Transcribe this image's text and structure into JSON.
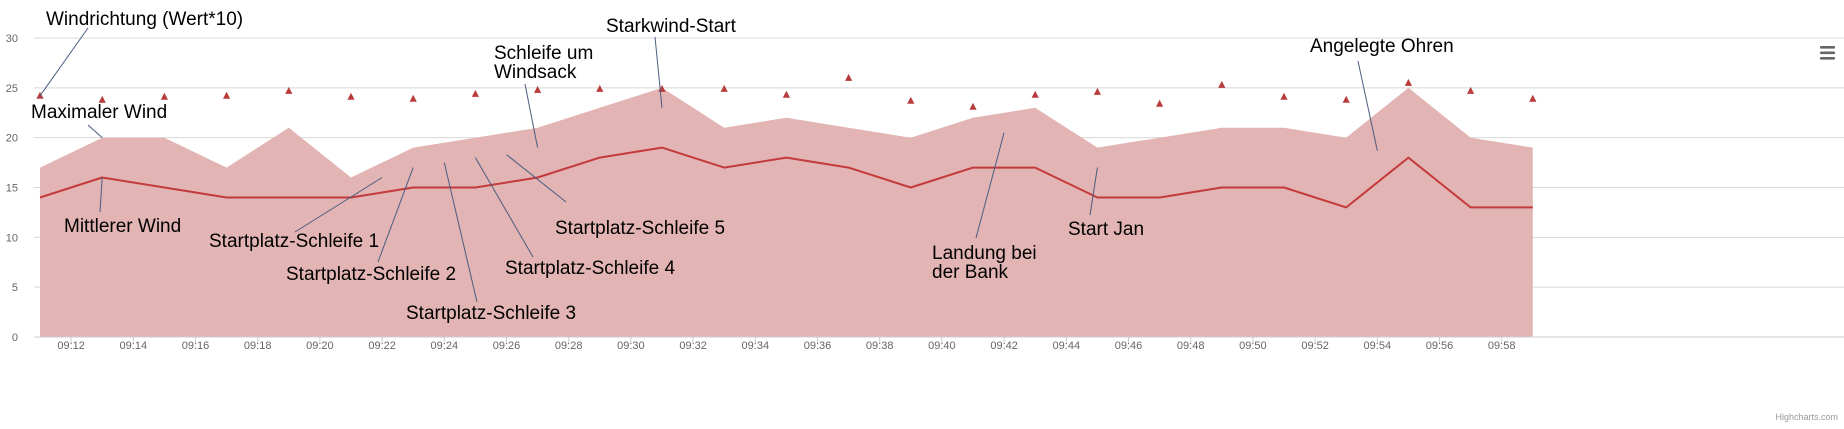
{
  "chart_data": {
    "type": "area",
    "title": "",
    "xlabel": "",
    "ylabel": "",
    "ylim": [
      0,
      30
    ],
    "y_ticks": [
      0,
      5,
      10,
      15,
      20,
      25,
      30
    ],
    "x_ticks": [
      "09:12",
      "09:14",
      "09:16",
      "09:18",
      "09:20",
      "09:22",
      "09:24",
      "09:26",
      "09:28",
      "09:30",
      "09:32",
      "09:34",
      "09:36",
      "09:38",
      "09:40",
      "09:42",
      "09:44",
      "09:46",
      "09:48",
      "09:50",
      "09:52",
      "09:54",
      "09:56",
      "09:58"
    ],
    "grid": true,
    "legend": "none",
    "x": [
      "09:11",
      "09:13",
      "09:15",
      "09:17",
      "09:19",
      "09:21",
      "09:23",
      "09:25",
      "09:27",
      "09:29",
      "09:31",
      "09:33",
      "09:35",
      "09:37",
      "09:39",
      "09:41",
      "09:43",
      "09:45",
      "09:47",
      "09:49",
      "09:51",
      "09:53",
      "09:55",
      "09:57",
      "09:59"
    ],
    "series": [
      {
        "type": "area",
        "color": "#e2b4b4",
        "values": [
          17,
          20,
          20,
          17,
          21,
          16,
          19,
          20,
          21,
          23,
          25,
          21,
          22,
          21,
          20,
          22,
          23,
          19,
          20,
          21,
          21,
          20,
          25,
          20,
          19
        ]
      },
      {
        "type": "line",
        "color": "#c33a3a",
        "values": [
          14,
          16,
          15,
          14,
          14,
          14,
          15,
          15,
          16,
          18,
          19,
          17,
          18,
          17,
          15,
          17,
          17,
          14,
          14,
          15,
          15,
          13,
          18,
          13,
          13
        ]
      },
      {
        "type": "scatter",
        "marker": "triangle",
        "color": "#b83c3c",
        "values": [
          24.2,
          23.8,
          24.1,
          24.2,
          24.7,
          24.1,
          23.9,
          24.4,
          24.8,
          24.9,
          24.9,
          24.9,
          24.3,
          26.0,
          23.7,
          23.1,
          24.3,
          24.6,
          23.4,
          25.3,
          24.1,
          23.8,
          25.5,
          24.7,
          23.9
        ]
      }
    ],
    "annotations": [
      {
        "id": "windrichtung",
        "lines": [
          "Windrichtung (Wert*10)"
        ],
        "x": "09:11",
        "y": 24.2
      },
      {
        "id": "maximaler-wind",
        "lines": [
          "Maximaler Wind"
        ],
        "x": "09:13",
        "y": 20
      },
      {
        "id": "mittlerer-wind",
        "lines": [
          "Mittlerer Wind"
        ],
        "x": "09:13",
        "y": 16
      },
      {
        "id": "startplatz-schleife-1",
        "lines": [
          "Startplatz-Schleife 1"
        ],
        "x": "09:22",
        "y": 16
      },
      {
        "id": "startplatz-schleife-2",
        "lines": [
          "Startplatz-Schleife 2"
        ],
        "x": "09:23",
        "y": 17
      },
      {
        "id": "startplatz-schleife-3",
        "lines": [
          "Startplatz-Schleife 3"
        ],
        "x": "09:24",
        "y": 17.5
      },
      {
        "id": "startplatz-schleife-4",
        "lines": [
          "Startplatz-Schleife 4"
        ],
        "x": "09:25",
        "y": 18
      },
      {
        "id": "startplatz-schleife-5",
        "lines": [
          "Startplatz-Schleife 5"
        ],
        "x": "09:26",
        "y": 18.3
      },
      {
        "id": "schleife-um-windsack",
        "lines": [
          "Schleife um",
          "Windsack"
        ],
        "x": "09:27",
        "y": 19
      },
      {
        "id": "starkwind-start",
        "lines": [
          "Starkwind-Start"
        ],
        "x": "09:31",
        "y": 23
      },
      {
        "id": "landung-bei-der-bank",
        "lines": [
          "Landung bei",
          "der Bank"
        ],
        "x": "09:42",
        "y": 20.5
      },
      {
        "id": "start-jan",
        "lines": [
          "Start Jan"
        ],
        "x": "09:45",
        "y": 17
      },
      {
        "id": "angelegte-ohren",
        "lines": [
          "Angelegte Ohren"
        ],
        "x": "09:54",
        "y": 18.7
      }
    ]
  },
  "credits": "Highcharts.com",
  "menu_icon": "hamburger-menu-icon"
}
